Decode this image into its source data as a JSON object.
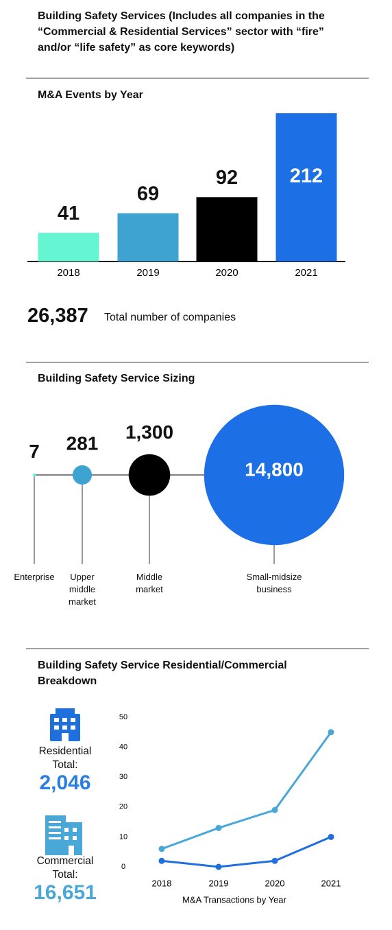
{
  "title": "Building Safety Services (Includes all companies in the “Commercial & Residential Services” sector with “fire” and/or “life safety” as core keywords)",
  "chart_data": [
    {
      "type": "bar",
      "title": "M&A Events by Year",
      "categories": [
        "2018",
        "2019",
        "2020",
        "2021"
      ],
      "values": [
        41,
        69,
        92,
        212
      ],
      "colors": [
        "#66f5d3",
        "#3fa3d1",
        "#000000",
        "#1d6fe6"
      ]
    },
    {
      "type": "bubble",
      "title": "Building Safety Service Sizing",
      "categories": [
        "Enterprise",
        "Upper middle market",
        "Middle market",
        "Small-midsize business"
      ],
      "values": [
        7,
        281,
        1300,
        14800
      ],
      "value_labels": [
        "7",
        "281",
        "1,300",
        "14,800"
      ],
      "colors": [
        "#66f5d3",
        "#3fa3d1",
        "#000000",
        "#1d6fe6"
      ]
    },
    {
      "type": "line",
      "title": "Building Safety Service Residential/Commercial Breakdown",
      "categories": [
        "2018",
        "2019",
        "2020",
        "2021"
      ],
      "series": [
        {
          "color": "#4aa8d8",
          "values": [
            6,
            13,
            19,
            45
          ]
        },
        {
          "color": "#1f6fdc",
          "values": [
            2,
            0,
            2,
            10
          ]
        }
      ],
      "ylim": [
        0,
        50
      ],
      "yticks": [
        0,
        10,
        20,
        30,
        40,
        50
      ],
      "xlabel": "M&A Transactions by Year"
    }
  ],
  "stat": {
    "value": "26,387",
    "text": "Total number of companies"
  },
  "totals": [
    {
      "label": "Residential Total:",
      "value": "2,046",
      "color": "#2a7de1"
    },
    {
      "label": "Commercial Total:",
      "value": "16,651",
      "color": "#4aa8d8"
    }
  ]
}
